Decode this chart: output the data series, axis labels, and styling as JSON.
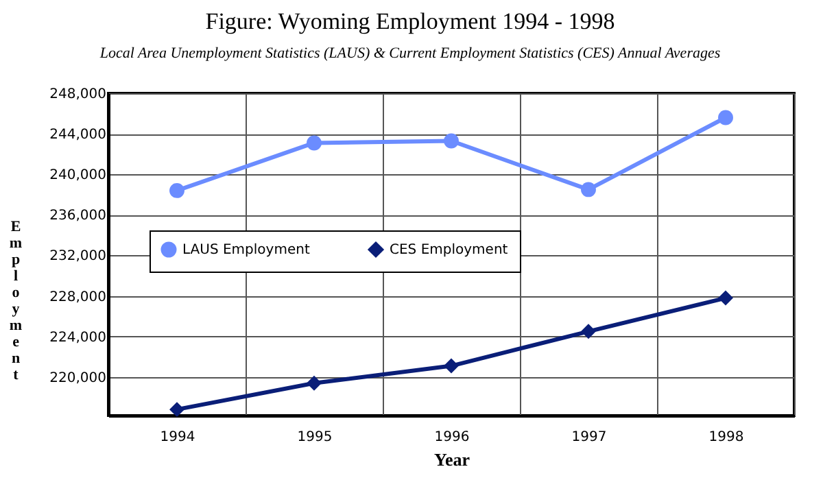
{
  "chart_data": {
    "type": "line",
    "title": "Figure:  Wyoming Employment 1994 - 1998",
    "subtitle": "Local Area Unemployment Statistics (LAUS) & Current Employment Statistics (CES) Annual Averages",
    "xlabel": "Year",
    "ylabel": "Employment",
    "categories": [
      "1994",
      "1995",
      "1996",
      "1997",
      "1998"
    ],
    "series": [
      {
        "name": "LAUS Employment",
        "color": "#6b8cff",
        "marker": "circle",
        "values": [
          238400,
          243100,
          243300,
          238500,
          245600
        ]
      },
      {
        "name": "CES Employment",
        "color": "#0a1e78",
        "marker": "diamond",
        "values": [
          216800,
          219400,
          221100,
          224500,
          227800
        ]
      }
    ],
    "ylim": [
      216200,
      248000
    ],
    "yticks": [
      {
        "value": 220000,
        "label": "220,000"
      },
      {
        "value": 224000,
        "label": "224,000"
      },
      {
        "value": 228000,
        "label": "228,000"
      },
      {
        "value": 232000,
        "label": "232,000"
      },
      {
        "value": 236000,
        "label": "236,000"
      },
      {
        "value": 240000,
        "label": "240,000"
      },
      {
        "value": 244000,
        "label": "244,000"
      },
      {
        "value": 248000,
        "label": "248,000"
      }
    ],
    "grid": true,
    "legend": "left",
    "line_style": "solid"
  }
}
